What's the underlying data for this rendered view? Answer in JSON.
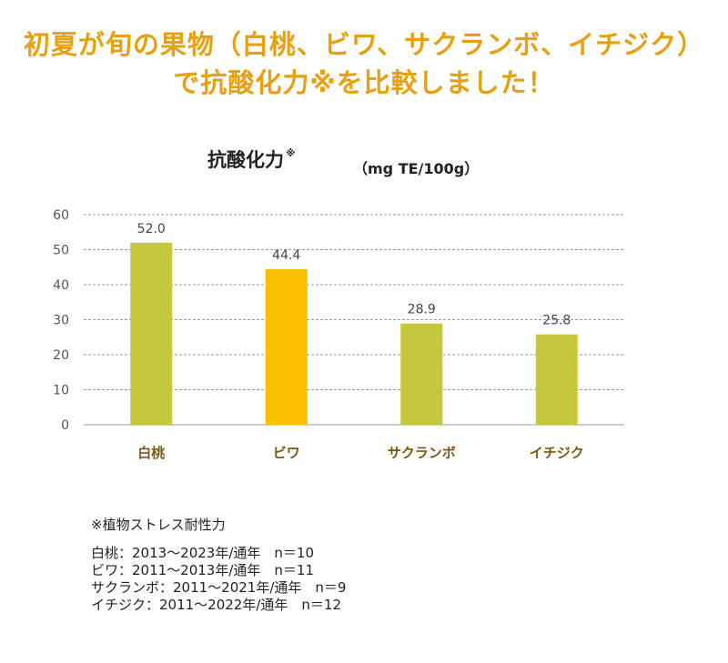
{
  "headline": {
    "line1": "初夏が旬の果物（白桃、ビワ、サクランボ、イチジク）",
    "line2": "で抗酸化力※を比較しました！",
    "color": "#e6a010"
  },
  "chart_data": {
    "type": "bar",
    "title": "抗酸化力",
    "title_mark": "※",
    "unit": "（mg TE/100g）",
    "categories": [
      "白桃",
      "ビワ",
      "サクランボ",
      "イチジク"
    ],
    "values": [
      52.0,
      44.4,
      28.9,
      25.8
    ],
    "value_labels": [
      "52.0",
      "44.4",
      "28.9",
      "25.8"
    ],
    "bar_colors": [
      "#c5c83c",
      "#f8c000",
      "#c5c83c",
      "#c5c83c"
    ],
    "ylim": [
      0,
      60
    ],
    "yticks": [
      0,
      10,
      20,
      30,
      40,
      50,
      60
    ],
    "grid": true,
    "grid_style": "dashed",
    "xlabel": "",
    "ylabel": ""
  },
  "notes": {
    "definition": "※植物ストレス耐性力",
    "rows": [
      "白桃：2013～2023年/通年　n＝10",
      "ビワ：2011～2013年/通年　n＝11",
      "サクランボ：2011～2021年/通年　n＝9",
      "イチジク：2011～2022年/通年　n＝12"
    ]
  }
}
